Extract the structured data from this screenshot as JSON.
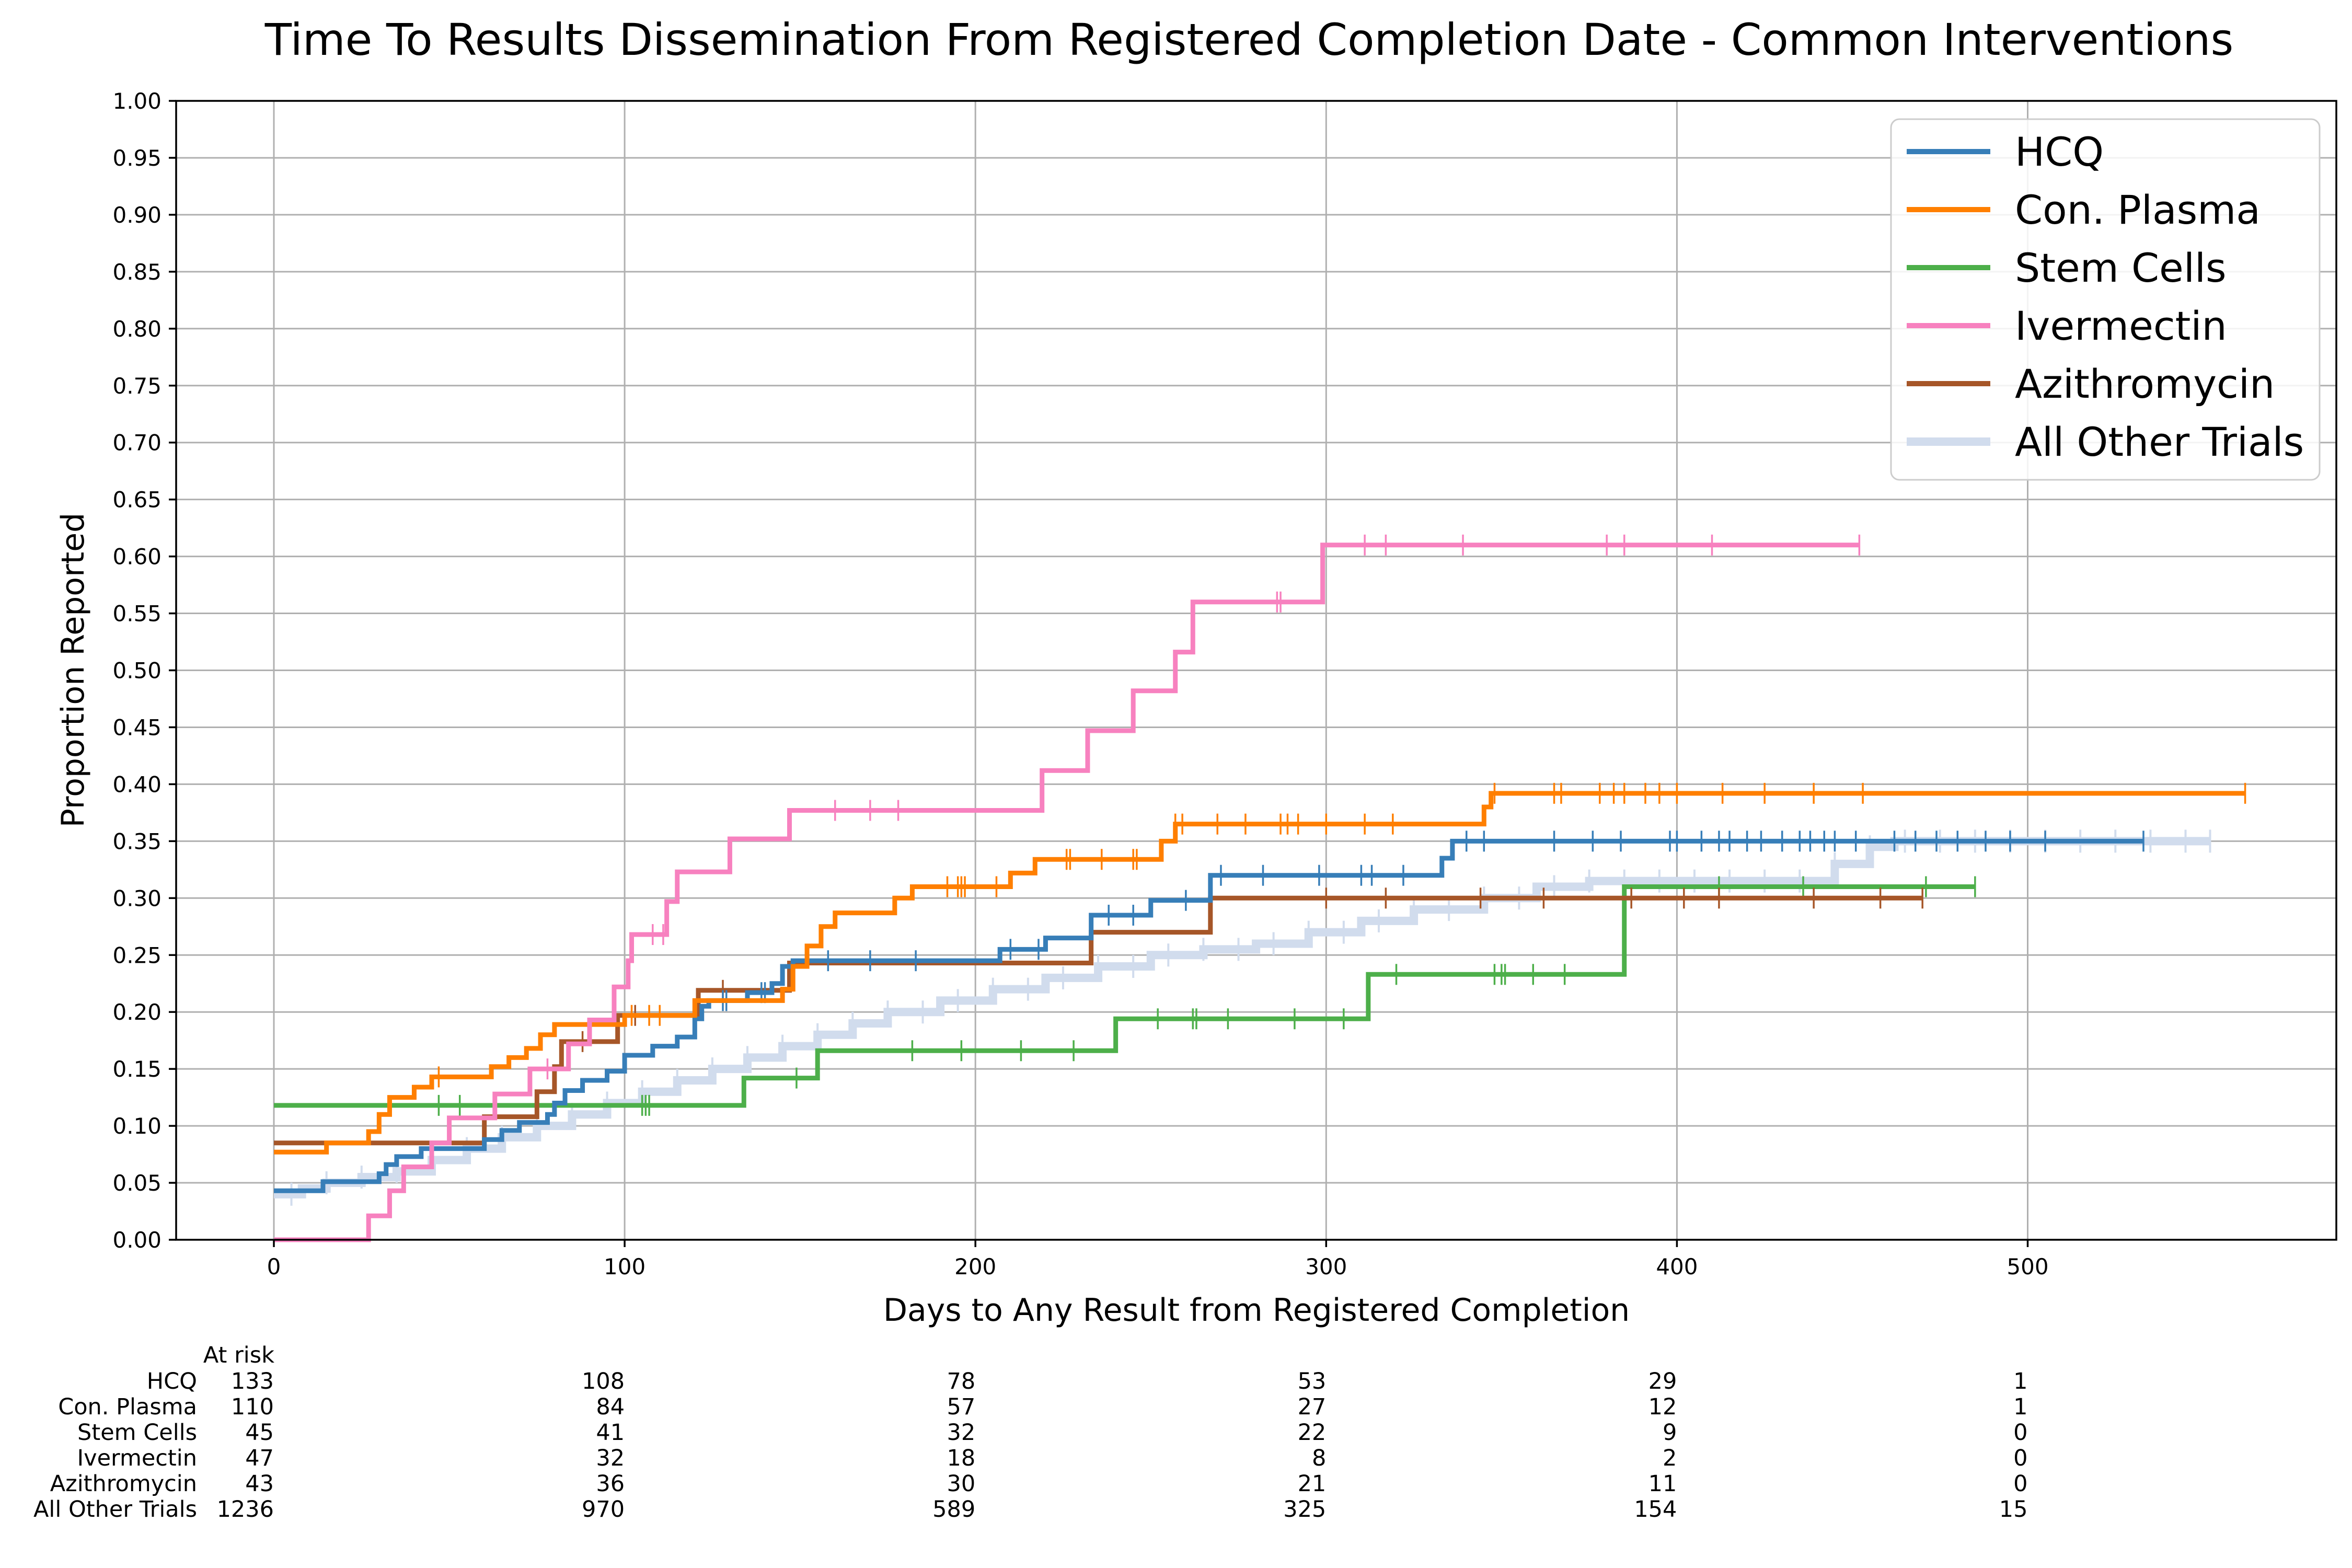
{
  "chart_data": {
    "type": "line",
    "title": "Time To Results Dissemination From Registered Completion Date - Common Interventions",
    "xlabel": "Days to Any Result from Registered Completion",
    "ylabel": "Proportion Reported",
    "xlim": [
      -28,
      588
    ],
    "ylim": [
      0,
      1
    ],
    "x_ticks": [
      0,
      100,
      200,
      300,
      400,
      500
    ],
    "x_tick_labels": [
      "0",
      "100",
      "200",
      "300",
      "400",
      "500"
    ],
    "y_ticks": [
      0,
      0.05,
      0.1,
      0.15,
      0.2,
      0.25,
      0.3,
      0.35,
      0.4,
      0.45,
      0.5,
      0.55,
      0.6,
      0.65,
      0.7,
      0.75,
      0.8,
      0.85,
      0.9,
      0.95,
      1.0
    ],
    "y_tick_labels": [
      "0.00",
      "0.05",
      "0.10",
      "0.15",
      "0.20",
      "0.25",
      "0.30",
      "0.35",
      "0.40",
      "0.45",
      "0.50",
      "0.55",
      "0.60",
      "0.65",
      "0.70",
      "0.75",
      "0.80",
      "0.85",
      "0.90",
      "0.95",
      "1.00"
    ],
    "grid": true,
    "legend_position": "top-right",
    "series": [
      {
        "name": "All Other Trials",
        "color": "#d1dced",
        "steps": [
          [
            0,
            0.04
          ],
          [
            8,
            0.045
          ],
          [
            15,
            0.05
          ],
          [
            25,
            0.055
          ],
          [
            35,
            0.06
          ],
          [
            45,
            0.07
          ],
          [
            55,
            0.08
          ],
          [
            65,
            0.09
          ],
          [
            75,
            0.1
          ],
          [
            85,
            0.11
          ],
          [
            95,
            0.12
          ],
          [
            105,
            0.13
          ],
          [
            115,
            0.14
          ],
          [
            125,
            0.15
          ],
          [
            135,
            0.16
          ],
          [
            145,
            0.17
          ],
          [
            155,
            0.18
          ],
          [
            165,
            0.19
          ],
          [
            175,
            0.2
          ],
          [
            190,
            0.21
          ],
          [
            205,
            0.22
          ],
          [
            220,
            0.23
          ],
          [
            235,
            0.24
          ],
          [
            250,
            0.25
          ],
          [
            265,
            0.255
          ],
          [
            280,
            0.26
          ],
          [
            295,
            0.27
          ],
          [
            310,
            0.28
          ],
          [
            325,
            0.29
          ],
          [
            345,
            0.3
          ],
          [
            360,
            0.31
          ],
          [
            375,
            0.315
          ],
          [
            445,
            0.33
          ],
          [
            455,
            0.345
          ],
          [
            462,
            0.35
          ]
        ],
        "end": 552,
        "censor": [
          5,
          15,
          25,
          35,
          45,
          55,
          65,
          75,
          85,
          95,
          105,
          115,
          125,
          135,
          145,
          155,
          165,
          175,
          185,
          195,
          205,
          215,
          225,
          235,
          245,
          255,
          265,
          275,
          285,
          295,
          305,
          315,
          325,
          335,
          345,
          355,
          365,
          375,
          385,
          395,
          405,
          415,
          425,
          435,
          445,
          455,
          465,
          475,
          485,
          495,
          505,
          515,
          525,
          535,
          545,
          552
        ]
      },
      {
        "name": "Stem Cells",
        "color": "#4daf4a",
        "steps": [
          [
            0,
            0.118
          ],
          [
            134,
            0.142
          ],
          [
            155,
            0.166
          ],
          [
            240,
            0.194
          ],
          [
            312,
            0.233
          ],
          [
            385,
            0.31
          ]
        ],
        "end": 485,
        "censor": [
          47,
          53,
          105,
          106,
          107,
          149,
          182,
          196,
          213,
          228,
          252,
          262,
          263,
          272,
          291,
          305,
          320,
          348,
          350,
          351,
          359,
          368,
          412,
          436,
          471,
          485
        ]
      },
      {
        "name": "Azithromycin",
        "color": "#a65628",
        "steps": [
          [
            0,
            0.085
          ],
          [
            60,
            0.108
          ],
          [
            75,
            0.13
          ],
          [
            80,
            0.152
          ],
          [
            82,
            0.174
          ],
          [
            98,
            0.197
          ],
          [
            121,
            0.219
          ],
          [
            147,
            0.243
          ],
          [
            233,
            0.27
          ],
          [
            267,
            0.3
          ]
        ],
        "end": 470,
        "censor": [
          88,
          103,
          128,
          300,
          317,
          344,
          362,
          387,
          402,
          412,
          439,
          458,
          470
        ]
      },
      {
        "name": "HCQ",
        "color": "#377eb8",
        "steps": [
          [
            0,
            0.043
          ],
          [
            14,
            0.051
          ],
          [
            30,
            0.058
          ],
          [
            32,
            0.066
          ],
          [
            35,
            0.073
          ],
          [
            42,
            0.08
          ],
          [
            60,
            0.088
          ],
          [
            65,
            0.096
          ],
          [
            70,
            0.103
          ],
          [
            78,
            0.11
          ],
          [
            80,
            0.12
          ],
          [
            83,
            0.131
          ],
          [
            88,
            0.14
          ],
          [
            95,
            0.148
          ],
          [
            100,
            0.162
          ],
          [
            108,
            0.17
          ],
          [
            115,
            0.178
          ],
          [
            120,
            0.194
          ],
          [
            122,
            0.205
          ],
          [
            124,
            0.21
          ],
          [
            135,
            0.217
          ],
          [
            142,
            0.225
          ],
          [
            145,
            0.24
          ],
          [
            148,
            0.245
          ],
          [
            207,
            0.255
          ],
          [
            220,
            0.265
          ],
          [
            233,
            0.285
          ],
          [
            250,
            0.298
          ],
          [
            267,
            0.32
          ],
          [
            333,
            0.335
          ],
          [
            336,
            0.35
          ]
        ],
        "end": 533,
        "censor": [
          128,
          129,
          139,
          140,
          158,
          170,
          183,
          210,
          218,
          238,
          245,
          260,
          270,
          282,
          298,
          310,
          313,
          322,
          340,
          345,
          365,
          376,
          384,
          398,
          400,
          407,
          412,
          415,
          420,
          424,
          430,
          435,
          438,
          442,
          445,
          451,
          462,
          468,
          474,
          480,
          488,
          495,
          505,
          533
        ]
      },
      {
        "name": "Con. Plasma",
        "color": "#ff7f00",
        "steps": [
          [
            0,
            0.077
          ],
          [
            15,
            0.085
          ],
          [
            27,
            0.095
          ],
          [
            30,
            0.11
          ],
          [
            33,
            0.125
          ],
          [
            40,
            0.134
          ],
          [
            45,
            0.143
          ],
          [
            62,
            0.152
          ],
          [
            67,
            0.16
          ],
          [
            72,
            0.168
          ],
          [
            76,
            0.18
          ],
          [
            80,
            0.189
          ],
          [
            100,
            0.197
          ],
          [
            120,
            0.21
          ],
          [
            145,
            0.22
          ],
          [
            148,
            0.24
          ],
          [
            152,
            0.258
          ],
          [
            156,
            0.275
          ],
          [
            160,
            0.287
          ],
          [
            177,
            0.3
          ],
          [
            182,
            0.31
          ],
          [
            210,
            0.322
          ],
          [
            217,
            0.334
          ],
          [
            253,
            0.35
          ],
          [
            257,
            0.365
          ],
          [
            345,
            0.38
          ],
          [
            347,
            0.392
          ]
        ],
        "end": 562,
        "censor": [
          47,
          102,
          107,
          110,
          192,
          195,
          196,
          197,
          206,
          226,
          227,
          236,
          245,
          246,
          257,
          259,
          269,
          277,
          287,
          289,
          292,
          300,
          311,
          319,
          348,
          365,
          367,
          378,
          382,
          385,
          391,
          395,
          400,
          413,
          425,
          439,
          453,
          562
        ]
      },
      {
        "name": "Ivermectin",
        "color": "#f781bf",
        "steps": [
          [
            0,
            0.0
          ],
          [
            27,
            0.021
          ],
          [
            33,
            0.043
          ],
          [
            37,
            0.064
          ],
          [
            45,
            0.085
          ],
          [
            50,
            0.107
          ],
          [
            63,
            0.128
          ],
          [
            73,
            0.15
          ],
          [
            84,
            0.172
          ],
          [
            90,
            0.193
          ],
          [
            97,
            0.222
          ],
          [
            101,
            0.245
          ],
          [
            102,
            0.268
          ],
          [
            112,
            0.297
          ],
          [
            115,
            0.323
          ],
          [
            130,
            0.352
          ],
          [
            147,
            0.377
          ],
          [
            219,
            0.412
          ],
          [
            232,
            0.447
          ],
          [
            245,
            0.482
          ],
          [
            257,
            0.516
          ],
          [
            262,
            0.56
          ],
          [
            299,
            0.61
          ]
        ],
        "end": 452,
        "censor": [
          78,
          108,
          111,
          160,
          170,
          178,
          286,
          287,
          311,
          317,
          339,
          380,
          385,
          410,
          452
        ]
      }
    ],
    "legend": [
      "HCQ",
      "Con. Plasma",
      "Stem Cells",
      "Ivermectin",
      "Azithromycin",
      "All Other Trials"
    ],
    "at_risk": {
      "header": "At risk",
      "times": [
        0,
        100,
        200,
        300,
        400,
        500
      ],
      "rows": [
        {
          "label": "HCQ",
          "values": [
            "133",
            "108",
            "78",
            "53",
            "29",
            "1"
          ]
        },
        {
          "label": "Con. Plasma",
          "values": [
            "110",
            "84",
            "57",
            "27",
            "12",
            "1"
          ]
        },
        {
          "label": "Stem Cells",
          "values": [
            "45",
            "41",
            "32",
            "22",
            "9",
            "0"
          ]
        },
        {
          "label": "Ivermectin",
          "values": [
            "47",
            "32",
            "18",
            "8",
            "2",
            "0"
          ]
        },
        {
          "label": "Azithromycin",
          "values": [
            "43",
            "36",
            "30",
            "21",
            "11",
            "0"
          ]
        },
        {
          "label": "All Other Trials",
          "values": [
            "1236",
            "970",
            "589",
            "325",
            "154",
            "15"
          ]
        }
      ]
    }
  }
}
